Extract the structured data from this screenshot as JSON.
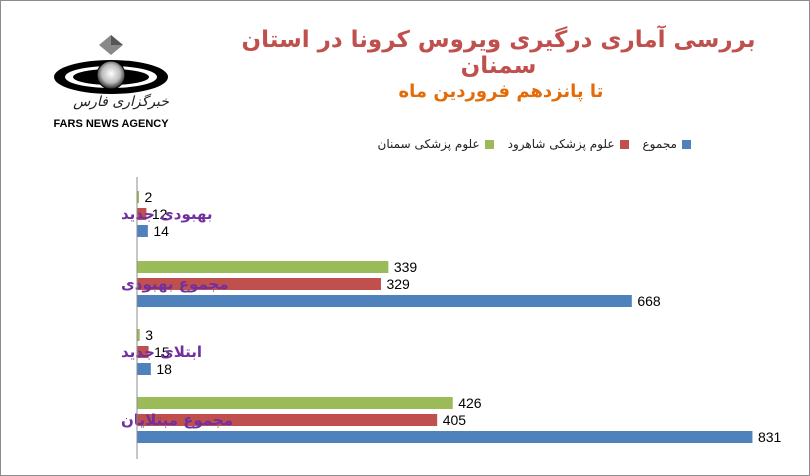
{
  "title": "بررسی آماری درگیری ویروس کرونا در استان سمنان",
  "subtitle": "تا پانزدهم فروردین ماه",
  "logo": {
    "text_fa": "خبرگزاری فارس",
    "text_en": "FARS NEWS AGENCY"
  },
  "chart_data": {
    "type": "bar",
    "orientation": "horizontal",
    "categories": [
      "بهبودی جدید",
      "مجموع بهبودی",
      "ابتلای جدید",
      "مجموع مبتلایان"
    ],
    "series": [
      {
        "name": "علوم پزشکی سمنان",
        "color": "#9bbb59",
        "values": [
          2,
          339,
          3,
          426
        ]
      },
      {
        "name": "علوم پزشکی شاهرود",
        "color": "#c0504d",
        "values": [
          12,
          329,
          15,
          405
        ]
      },
      {
        "name": "مجموع",
        "color": "#4f81bd",
        "values": [
          14,
          668,
          18,
          831
        ]
      }
    ],
    "legend_order": [
      "مجموع",
      "علوم پزشکی شاهرود",
      "علوم پزشکی سمنان"
    ],
    "xlim": [
      0,
      900
    ],
    "grid": false,
    "legend_position": "top"
  }
}
